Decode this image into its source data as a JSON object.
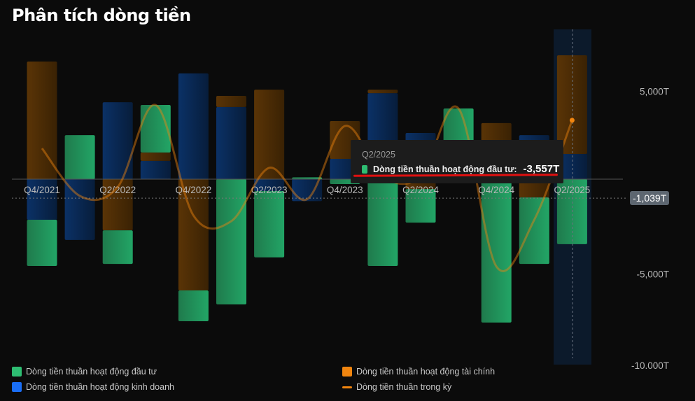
{
  "title": "Phân tích dòng tiền",
  "chart_data": {
    "type": "bar",
    "stacked": true,
    "title": "Phân tích dòng tiền",
    "unit": "T",
    "categories": [
      "Q4/2021",
      "Q1/2022",
      "Q2/2022",
      "Q3/2022",
      "Q4/2022",
      "Q1/2023",
      "Q2/2023",
      "Q3/2023",
      "Q4/2023",
      "Q1/2024",
      "Q2/2024",
      "Q3/2024",
      "Q4/2024",
      "Q1/2025",
      "Q2/2025"
    ],
    "tick_labels": [
      "Q4/2021",
      "Q2/2022",
      "Q4/2022",
      "Q2/2023",
      "Q4/2023",
      "Q2/2024",
      "Q4/2024",
      "Q2/2025"
    ],
    "y_ticks": [
      {
        "value": 5000,
        "label": "5,000T"
      },
      {
        "value": -5000,
        "label": "-5,000T"
      },
      {
        "value": -10000,
        "label": "-10.000T"
      }
    ],
    "ylim": [
      -10000,
      8300
    ],
    "series": [
      {
        "name": "Dòng tiền thuần hoạt động kinh doanh",
        "type": "bar",
        "color": "#1a6ef5",
        "values": [
          -2220,
          -3330,
          4210,
          1000,
          5790,
          3950,
          -650,
          -1200,
          1110,
          4710,
          2530,
          0,
          0,
          2410,
          1380
        ]
      },
      {
        "name": "Dòng tiền thuần hoạt động tài chính",
        "type": "bar",
        "color": "#f0850f",
        "values": [
          6440,
          0,
          -2800,
          460,
          -6090,
          610,
          4900,
          0,
          2070,
          190,
          -540,
          0,
          3070,
          -1000,
          5400
        ]
      },
      {
        "name": "Dòng tiền thuần hoạt động đầu tư",
        "type": "bar",
        "color": "#2ebd72",
        "values": [
          -2530,
          2410,
          -1840,
          2600,
          -1690,
          -6860,
          -3630,
          100,
          -270,
          -4750,
          -1840,
          3870,
          -7850,
          -3640,
          -3557
        ]
      },
      {
        "name": "Dòng tiền thuần trong kỳ",
        "type": "line",
        "color": "#f0850f",
        "values": [
          1690,
          -920,
          -430,
          4060,
          -1990,
          -2300,
          620,
          -1100,
          2910,
          150,
          150,
          3870,
          -4780,
          -2230,
          3223
        ]
      }
    ],
    "reference_line": {
      "value": -1039,
      "label": "-1,039T"
    },
    "highlighted_category": "Q2/2025",
    "legend_position": "bottom"
  },
  "tooltip": {
    "period": "Q2/2025",
    "label": "Dòng tiền thuần hoạt động đầu tư:",
    "value": "-3,557T",
    "color": "#2ebd72"
  },
  "legend": [
    {
      "label": "Dòng tiền thuần hoạt động đầu tư",
      "color": "#2ebd72",
      "kind": "box"
    },
    {
      "label": "Dòng tiền thuần hoạt động tài chính",
      "color": "#f0850f",
      "kind": "box"
    },
    {
      "label": "Dòng tiền thuần hoạt động kinh doanh",
      "color": "#1a6ef5",
      "kind": "box"
    },
    {
      "label": "Dòng tiền thuần trong kỳ",
      "color": "#f0850f",
      "kind": "line"
    }
  ]
}
